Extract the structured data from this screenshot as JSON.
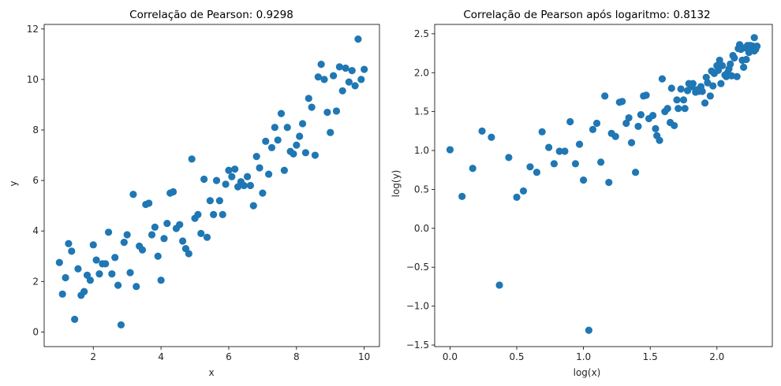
{
  "chart_data": [
    {
      "type": "scatter",
      "title": "Correlação de Pearson: 0.9298",
      "xlabel": "x",
      "ylabel": "y",
      "xlim": [
        0.55,
        10.45
      ],
      "ylim": [
        -0.58,
        12.18
      ],
      "xticks": [
        2,
        4,
        6,
        8,
        10
      ],
      "yticks": [
        0,
        2,
        4,
        6,
        8,
        10,
        12
      ],
      "xtick_labels": [
        "2",
        "4",
        "6",
        "8",
        "10"
      ],
      "ytick_labels": [
        "0",
        "2",
        "4",
        "6",
        "8",
        "10",
        "12"
      ],
      "color": "#1f77b4",
      "grid": false,
      "series": [
        {
          "x": [
            1.0,
            1.09,
            1.18,
            1.27,
            1.36,
            1.45,
            1.55,
            1.64,
            1.73,
            1.82,
            1.91,
            2.0,
            2.09,
            2.18,
            2.27,
            2.36,
            2.45,
            2.55,
            2.64,
            2.73,
            2.82,
            2.91,
            3.0,
            3.09,
            3.18,
            3.27,
            3.36,
            3.45,
            3.55,
            3.64,
            3.73,
            3.82,
            3.91,
            4.0,
            4.09,
            4.18,
            4.27,
            4.36,
            4.45,
            4.55,
            4.64,
            4.73,
            4.82,
            4.91,
            5.0,
            5.09,
            5.18,
            5.27,
            5.36,
            5.45,
            5.55,
            5.64,
            5.73,
            5.82,
            5.91,
            6.0,
            6.09,
            6.18,
            6.27,
            6.36,
            6.45,
            6.55,
            6.64,
            6.73,
            6.82,
            6.91,
            7.0,
            7.09,
            7.18,
            7.27,
            7.36,
            7.45,
            7.55,
            7.64,
            7.73,
            7.82,
            7.91,
            8.0,
            8.09,
            8.18,
            8.27,
            8.36,
            8.45,
            8.55,
            8.64,
            8.73,
            8.82,
            8.91,
            9.0,
            9.09,
            9.18,
            9.27,
            9.36,
            9.45,
            9.55,
            9.64,
            9.73,
            9.82,
            9.91,
            10.0
          ],
          "y": [
            2.75,
            1.5,
            2.15,
            3.5,
            3.2,
            0.5,
            2.5,
            1.45,
            1.6,
            2.25,
            2.05,
            3.45,
            2.85,
            2.3,
            2.7,
            2.7,
            3.95,
            2.3,
            2.95,
            1.85,
            0.28,
            3.55,
            3.85,
            2.35,
            5.45,
            1.8,
            3.4,
            3.25,
            5.05,
            5.1,
            3.85,
            4.15,
            3.0,
            2.05,
            3.7,
            4.3,
            5.5,
            5.55,
            4.1,
            4.25,
            3.6,
            3.3,
            3.1,
            6.85,
            4.5,
            4.65,
            3.9,
            6.05,
            3.75,
            5.2,
            4.65,
            6.0,
            5.2,
            4.65,
            5.85,
            6.4,
            6.15,
            6.45,
            5.75,
            5.95,
            5.8,
            6.15,
            5.8,
            5.0,
            6.95,
            6.5,
            5.5,
            7.55,
            6.25,
            7.3,
            8.1,
            7.6,
            8.65,
            6.4,
            8.1,
            7.15,
            7.05,
            7.4,
            7.75,
            8.25,
            7.1,
            9.25,
            8.9,
            7.0,
            10.1,
            10.6,
            10.0,
            8.7,
            7.9,
            10.15,
            8.75,
            10.5,
            9.55,
            10.45,
            9.9,
            10.35,
            9.75,
            11.6,
            10.0,
            10.4
          ]
        }
      ]
    },
    {
      "type": "scatter",
      "title": "Correlação de Pearson após logaritmo: 0.8132",
      "xlabel": "log(x)",
      "ylabel": "log(y)",
      "xlim": [
        -0.115,
        2.415
      ],
      "ylim": [
        -1.52,
        2.62
      ],
      "xticks": [
        0.0,
        0.5,
        1.0,
        1.5,
        2.0
      ],
      "yticks": [
        -1.5,
        -1.0,
        -0.5,
        0.0,
        0.5,
        1.0,
        1.5,
        2.0,
        2.5
      ],
      "xtick_labels": [
        "0.0",
        "0.5",
        "1.0",
        "1.5",
        "2.0"
      ],
      "ytick_labels": [
        "−1.5",
        "−1.0",
        "−0.5",
        "0.0",
        "0.5",
        "1.0",
        "1.5",
        "2.0",
        "2.5"
      ],
      "color": "#1f77b4",
      "grid": false,
      "series": [
        {
          "x": [
            0.0,
            0.09,
            0.17,
            0.24,
            0.31,
            0.37,
            0.44,
            0.5,
            0.55,
            0.6,
            0.65,
            0.69,
            0.74,
            0.78,
            0.82,
            0.86,
            0.9,
            0.94,
            0.97,
            1.0,
            1.04,
            1.07,
            1.1,
            1.13,
            1.16,
            1.19,
            1.21,
            1.24,
            1.27,
            1.29,
            1.32,
            1.34,
            1.36,
            1.39,
            1.41,
            1.43,
            1.45,
            1.47,
            1.49,
            1.52,
            1.54,
            1.55,
            1.57,
            1.59,
            1.61,
            1.63,
            1.65,
            1.66,
            1.68,
            1.7,
            1.71,
            1.73,
            1.75,
            1.76,
            1.78,
            1.79,
            1.81,
            1.82,
            1.84,
            1.85,
            1.86,
            1.88,
            1.89,
            1.91,
            1.92,
            1.93,
            1.95,
            1.96,
            1.97,
            1.98,
            2.0,
            2.01,
            2.02,
            2.03,
            2.04,
            2.06,
            2.07,
            2.08,
            2.09,
            2.1,
            2.11,
            2.12,
            2.13,
            2.15,
            2.16,
            2.17,
            2.18,
            2.19,
            2.2,
            2.21,
            2.22,
            2.23,
            2.24,
            2.25,
            2.26,
            2.27,
            2.28,
            2.28,
            2.29,
            2.3
          ],
          "y": [
            1.01,
            0.41,
            0.77,
            1.25,
            1.17,
            -0.73,
            0.91,
            0.4,
            0.48,
            0.79,
            0.72,
            1.24,
            1.04,
            0.83,
            0.99,
            0.99,
            1.37,
            0.83,
            1.08,
            0.62,
            -1.31,
            1.27,
            1.35,
            0.85,
            1.7,
            0.59,
            1.22,
            1.18,
            1.62,
            1.63,
            1.35,
            1.42,
            1.1,
            0.72,
            1.31,
            1.46,
            1.7,
            1.71,
            1.41,
            1.45,
            1.28,
            1.19,
            1.13,
            1.92,
            1.5,
            1.54,
            1.36,
            1.8,
            1.32,
            1.65,
            1.54,
            1.79,
            1.65,
            1.54,
            1.77,
            1.86,
            1.82,
            1.86,
            1.75,
            1.78,
            1.76,
            1.82,
            1.76,
            1.61,
            1.94,
            1.87,
            1.7,
            2.02,
            1.83,
            1.99,
            2.09,
            2.03,
            2.16,
            1.86,
            2.09,
            1.97,
            1.95,
            2.0,
            2.05,
            2.11,
            1.96,
            2.22,
            2.19,
            1.95,
            2.31,
            2.36,
            2.3,
            2.16,
            2.07,
            2.32,
            2.17,
            2.35,
            2.26,
            2.35,
            2.29,
            2.34,
            2.28,
            2.45,
            2.3,
            2.34
          ]
        }
      ]
    }
  ]
}
